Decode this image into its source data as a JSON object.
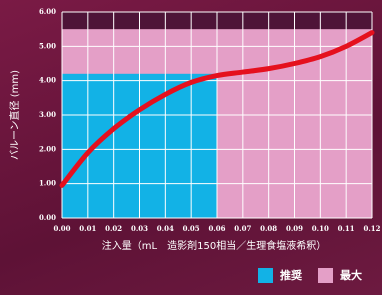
{
  "chart_data": {
    "type": "line",
    "y_label": "バルーン直径 (mm)",
    "x_label": "注入量（mL　造影剤150相当／生理食塩液希釈）",
    "x": [
      0,
      0.01,
      0.02,
      0.03,
      0.04,
      0.05,
      0.06,
      0.07,
      0.08,
      0.09,
      0.1,
      0.11,
      0.12
    ],
    "series": [
      {
        "color": "#e5101e",
        "values": [
          0.95,
          1.9,
          2.6,
          3.15,
          3.6,
          3.95,
          4.15,
          4.25,
          4.35,
          4.5,
          4.7,
          5.0,
          5.4
        ]
      }
    ],
    "regions": [
      {
        "name": "最大",
        "color": "#e49fc7",
        "xlim": [
          0,
          0.12
        ],
        "ylim": [
          0,
          5.5
        ]
      },
      {
        "name": "推奨",
        "color": "#12b2e6",
        "xlim": [
          0,
          0.06
        ],
        "ylim": [
          0,
          4.2
        ]
      }
    ],
    "xlim": [
      0,
      0.12
    ],
    "ylim": [
      0,
      6
    ],
    "xticks": [
      {
        "value": 0,
        "label": "0.00"
      },
      {
        "value": 0.01,
        "label": "0.01"
      },
      {
        "value": 0.02,
        "label": "0.02"
      },
      {
        "value": 0.03,
        "label": "0.03"
      },
      {
        "value": 0.04,
        "label": "0.04"
      },
      {
        "value": 0.05,
        "label": "0.05"
      },
      {
        "value": 0.06,
        "label": "0.06"
      },
      {
        "value": 0.07,
        "label": "0.07"
      },
      {
        "value": 0.08,
        "label": "0.08"
      },
      {
        "value": 0.09,
        "label": "0.09"
      },
      {
        "value": 0.1,
        "label": "0.10"
      },
      {
        "value": 0.11,
        "label": "0.11"
      },
      {
        "value": 0.12,
        "label": "0.12"
      }
    ],
    "yticks": [
      {
        "value": 0,
        "label": "0.00"
      },
      {
        "value": 1,
        "label": "1.00"
      },
      {
        "value": 2,
        "label": "2.00"
      },
      {
        "value": 3,
        "label": "3.00"
      },
      {
        "value": 4,
        "label": "4.00"
      },
      {
        "value": 5,
        "label": "5.00"
      },
      {
        "value": 6,
        "label": "6.00"
      }
    ],
    "grid": true
  }
}
